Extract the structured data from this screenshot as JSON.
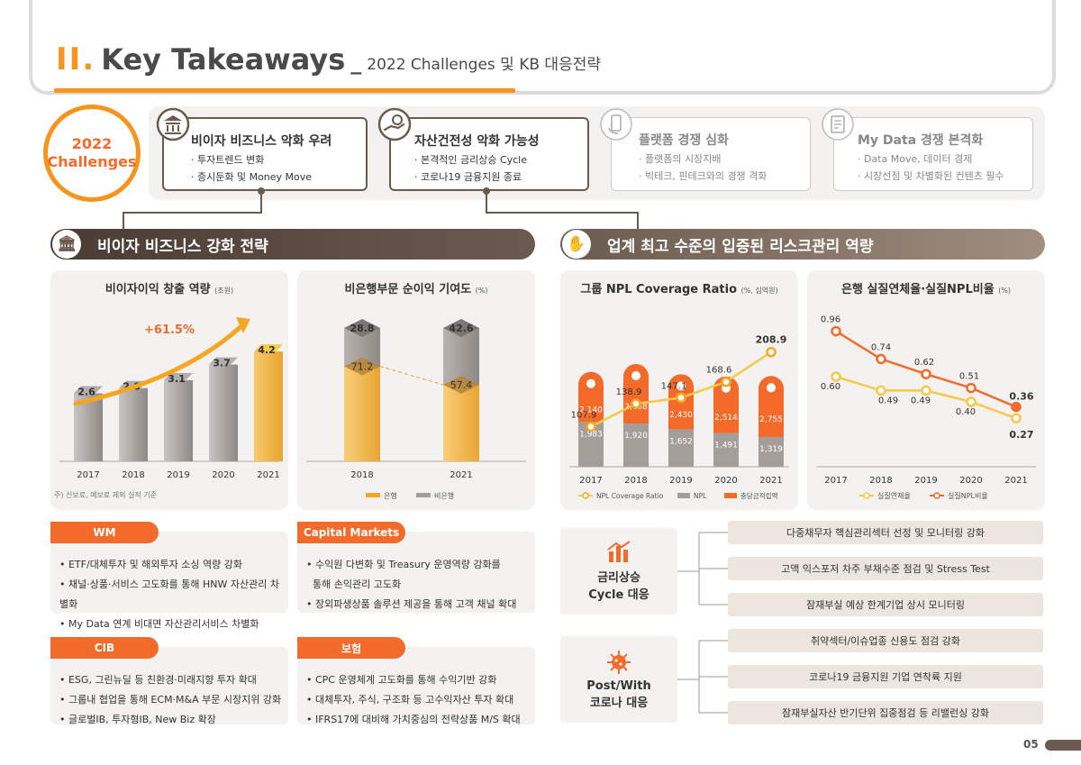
{
  "header": {
    "section_num": "II.",
    "title": "Key Takeaways",
    "sep": "_",
    "subtitle": "2022 Challenges 및 KB 대응전략",
    "page_number": "05"
  },
  "challenges": {
    "badge_line1": "2022",
    "badge_line2": "Challenges",
    "items": [
      {
        "icon": "bank-icon",
        "title": "비이자 비즈니스 악화 우려",
        "lines": [
          "· 투자트렌드 변화",
          "· 증시둔화 및 Money Move"
        ]
      },
      {
        "icon": "hand-coin-icon",
        "title": "자산건전성 악화 가능성",
        "lines": [
          "· 본격적인 금리상승 Cycle",
          "· 코로나19 금융지원 종료"
        ]
      },
      {
        "icon": "phone-hand-icon",
        "title": "플랫폼 경쟁 심화",
        "lines": [
          "· 플랫폼의 시장지배",
          "· 빅테크, 핀테크와의 경쟁 격화"
        ]
      },
      {
        "icon": "document-icon",
        "title": "My Data 경쟁 본격화",
        "lines": [
          "· Data Move, 데이터 경제",
          "· 시장선점 및 차별화된 컨텐츠 필수"
        ]
      }
    ]
  },
  "sections": {
    "left_title": "비이자 비즈니스 강화 전략",
    "right_title": "업계 최고 수준의 입증된 리스크관리 역량"
  },
  "charts": {
    "c1": {
      "title": "비이자이익 창출 역량",
      "unit": "(조원)",
      "growth": "+61.5%",
      "footnote": "주) 신보료, 예보료 제외 실적 기준"
    },
    "c2": {
      "title": "비은행부문 순이익 기여도",
      "unit": "(%)",
      "legend": [
        "은행",
        "비은행"
      ]
    },
    "c3": {
      "title": "그룹 NPL Coverage Ratio",
      "unit": "(%, 십억원)",
      "legend": [
        "NPL Coverage Ratio",
        "NPL",
        "충당금적립액"
      ]
    },
    "c4": {
      "title": "은행 실질연체율·실질NPL비율",
      "unit": "(%)",
      "legend": [
        "실질연체율",
        "실질NPL비율"
      ]
    }
  },
  "chart_data": [
    {
      "type": "bar",
      "title": "비이자이익 창출 역량",
      "unit": "조원",
      "categories": [
        "2017",
        "2018",
        "2019",
        "2020",
        "2021"
      ],
      "values": [
        2.6,
        2.8,
        3.1,
        3.7,
        4.2
      ],
      "annotation": "+61.5%",
      "ylim": [
        0,
        4.5
      ]
    },
    {
      "type": "bar",
      "title": "비은행부문 순이익 기여도",
      "unit": "%",
      "stacked": true,
      "categories": [
        "2018",
        "2021"
      ],
      "series": [
        {
          "name": "은행",
          "values": [
            71.2,
            57.4
          ]
        },
        {
          "name": "비은행",
          "values": [
            28.8,
            42.6
          ]
        }
      ],
      "ylim": [
        0,
        100
      ]
    },
    {
      "type": "line",
      "title": "그룹 NPL Coverage Ratio",
      "unit": "%, 십억원",
      "categories": [
        "2017",
        "2018",
        "2019",
        "2020",
        "2021"
      ],
      "series": [
        {
          "name": "NPL Coverage Ratio",
          "type": "line",
          "values": [
            107.9,
            138.9,
            147.1,
            168.6,
            208.9
          ]
        },
        {
          "name": "NPL",
          "type": "bar",
          "values": [
            1983,
            1920,
            1652,
            1491,
            1319
          ]
        },
        {
          "name": "충당금적립액",
          "type": "bar",
          "values": [
            2140,
            2668,
            2430,
            2514,
            2755
          ]
        }
      ]
    },
    {
      "type": "line",
      "title": "은행 실질연체율·실질NPL비율",
      "unit": "%",
      "categories": [
        "2017",
        "2018",
        "2019",
        "2020",
        "2021"
      ],
      "series": [
        {
          "name": "실질연체율",
          "values": [
            0.6,
            0.49,
            0.49,
            0.4,
            0.27
          ]
        },
        {
          "name": "실질NPL비율",
          "values": [
            0.96,
            0.74,
            0.62,
            0.51,
            0.36
          ]
        }
      ],
      "ylim": [
        0,
        1.1
      ]
    }
  ],
  "strategies": {
    "wm": {
      "tag": "WM",
      "lines": [
        "• ETF/대체투자 및 해외투자 소싱 역량 강화",
        "• 채널·상품·서비스 고도화를 통해 HNW 자산관리 차별화",
        "• My Data 연계 비대면 자산관리서비스 차별화"
      ]
    },
    "cm": {
      "tag": "Capital Markets",
      "lines": [
        "• 수익원 다변화 및 Treasury 운영역량 강화를",
        "  통해 손익관리 고도화",
        "• 장외파생상품 솔루션 제공을 통해 고객 채널 확대"
      ]
    },
    "cib": {
      "tag": "CIB",
      "lines": [
        "• ESG, 그린뉴딜 등 친환경·미래지향 투자 확대",
        "• 그룹내 협업을 통해 ECM·M&A 부문 시장지위 강화",
        "• 글로벌IB, 투자형IB, New Biz 확장"
      ]
    },
    "ins": {
      "tag": "보험",
      "lines": [
        "• CPC 운영체계 고도화를 통해 수익기반 강화",
        "• 대체투자, 주식, 구조화 등 고수익자산 투자 확대",
        "• IFRS17에 대비해 가치중심의 전략상품 M/S 확대"
      ]
    }
  },
  "risk": {
    "rate": {
      "icon": "bar-chart-icon",
      "label1": "금리상승",
      "label2": "Cycle 대응",
      "items": [
        "다중채무자 핵심관리섹터 선정 및 모니터링 강화",
        "고액 익스포저 차주 부채수준 점검 및 Stress Test",
        "잠재부실 예상 한계기업 상시 모니터링"
      ]
    },
    "covid": {
      "icon": "virus-icon",
      "label1": "Post/With",
      "label2": "코로나 대응",
      "items": [
        "취약섹터/이슈업종 신용도 점검 강화",
        "코로나19 금융지원 기업 연착륙 지원",
        "잠재부실자산 반기단위 집중점검 등 리밸런싱 강화"
      ]
    }
  },
  "colors": {
    "orange": "#f7941d",
    "red_orange": "#f26b2a",
    "brown": "#6b5a4f",
    "gray_bar": "#a39e9a",
    "yellow": "#f7c948"
  }
}
